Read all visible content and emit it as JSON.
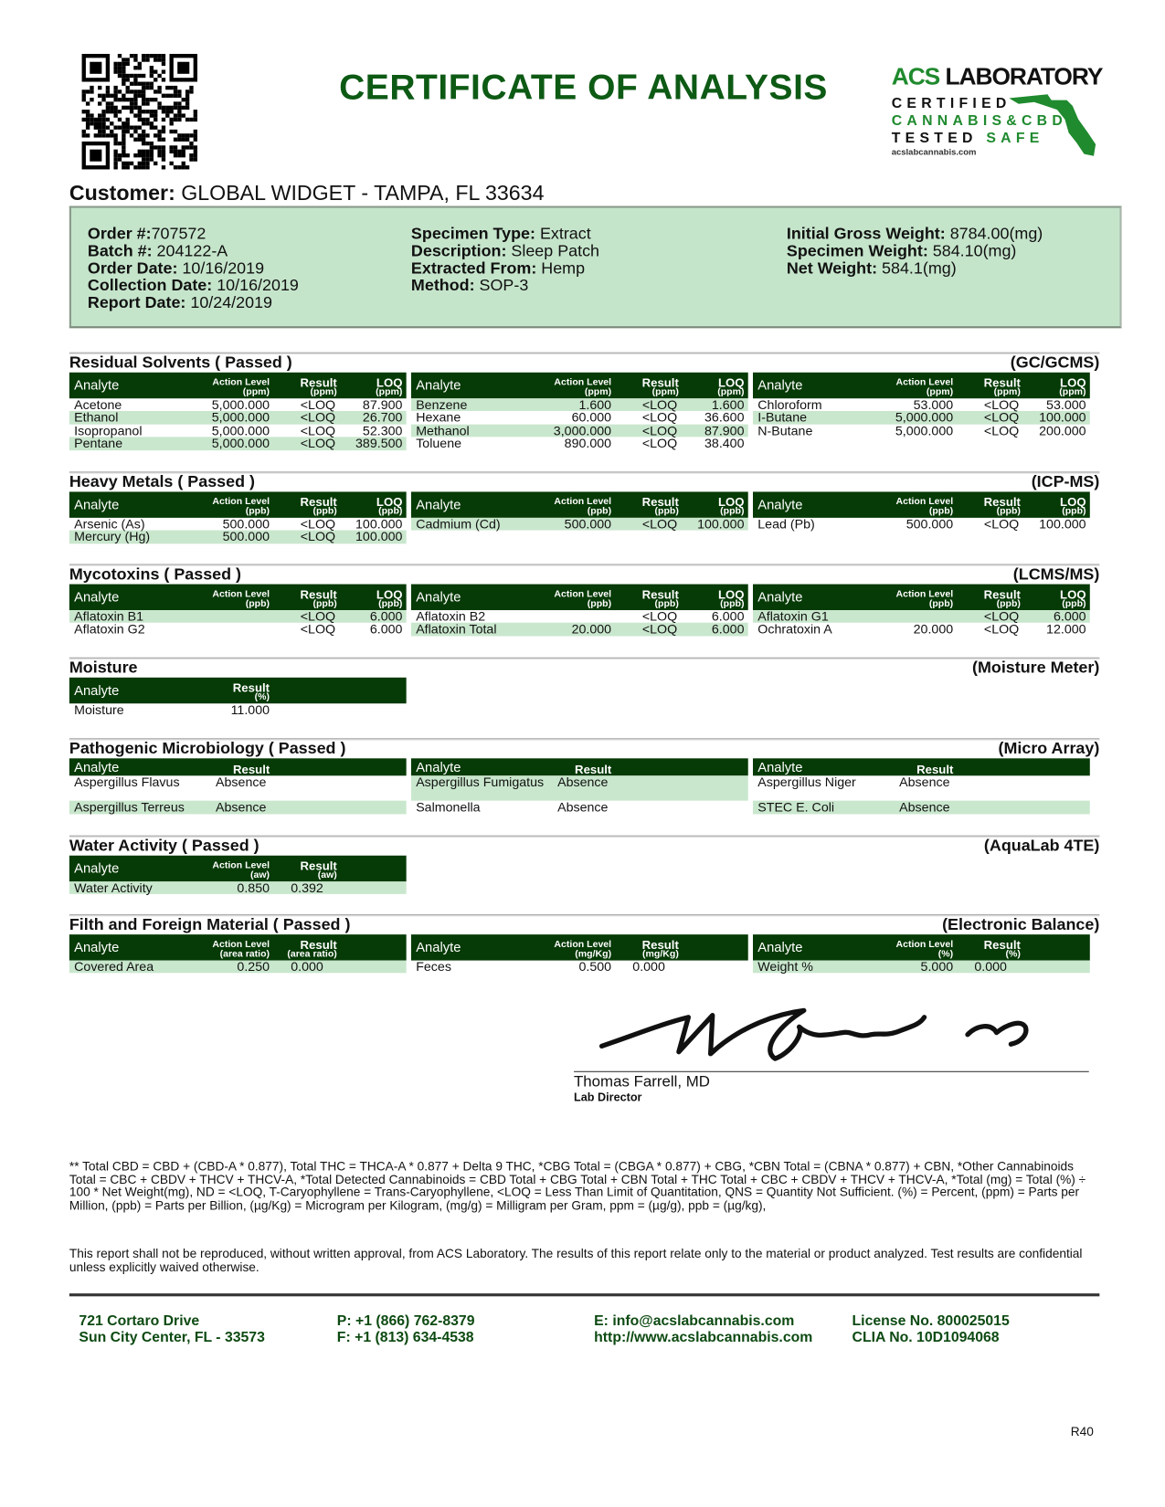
{
  "header": {
    "title": "CERTIFICATE OF ANALYSIS",
    "logo": {
      "brand_green": "ACS",
      "brand_black": "LABORATORY",
      "line1": "CERTIFIED",
      "line2": "CANNABIS&CBD",
      "line3a": "TESTED",
      "line3b": "SAFE",
      "url": "acslabcannabis.com"
    },
    "qr_icon": "qr-code"
  },
  "customer": {
    "label": "Customer:",
    "value": "GLOBAL WIDGET  - TAMPA, FL 33634"
  },
  "info": {
    "col1": [
      {
        "k": "Order #:",
        "v": "707572"
      },
      {
        "k": "Batch #:",
        "v": " 204122-A"
      },
      {
        "k": "Order Date:",
        "v": " 10/16/2019"
      },
      {
        "k": "Collection Date:",
        "v": " 10/16/2019"
      },
      {
        "k": "Report Date:",
        "v": " 10/24/2019"
      }
    ],
    "col2": [
      {
        "k": "Specimen Type:",
        "v": " Extract"
      },
      {
        "k": "Description:",
        "v": " Sleep Patch"
      },
      {
        "k": "Extracted From:",
        "v": " Hemp"
      },
      {
        "k": "Method:",
        "v": " SOP-3"
      }
    ],
    "col3": [
      {
        "k": "Initial Gross Weight:",
        "v": " 8784.00(mg)"
      },
      {
        "k": "Specimen Weight:",
        "v": " 584.10(mg)"
      },
      {
        "k": "Net Weight:",
        "v": " 584.1(mg)"
      }
    ]
  },
  "sections": [
    {
      "title": "Residual Solvents ( Passed )",
      "method": "(GC/GCMS)",
      "grid": "g4",
      "headers": [
        {
          "label": "Analyte"
        },
        {
          "label": "Action Level",
          "unit": "(ppm)"
        },
        {
          "label": "Result",
          "unit": "(ppm)"
        },
        {
          "label": "LOQ",
          "unit": "(ppm)"
        }
      ],
      "columns": [
        [
          [
            "Acetone",
            "5,000.000",
            "<LOQ",
            "87.900"
          ],
          [
            "Ethanol",
            "5,000.000",
            "<LOQ",
            "26.700"
          ],
          [
            "Isopropanol",
            "5,000.000",
            "<LOQ",
            "52.300"
          ],
          [
            "Pentane",
            "5,000.000",
            "<LOQ",
            "389.500"
          ]
        ],
        [
          [
            "Benzene",
            "1.600",
            "<LOQ",
            "1.600"
          ],
          [
            "Hexane",
            "60.000",
            "<LOQ",
            "36.600"
          ],
          [
            "Methanol",
            "3,000.000",
            "<LOQ",
            "87.900"
          ],
          [
            "Toluene",
            "890.000",
            "<LOQ",
            "38.400"
          ]
        ],
        [
          [
            "Chloroform",
            "53.000",
            "<LOQ",
            "53.000"
          ],
          [
            "I-Butane",
            "5,000.000",
            "<LOQ",
            "100.000"
          ],
          [
            "N-Butane",
            "5,000.000",
            "<LOQ",
            "200.000"
          ]
        ]
      ]
    },
    {
      "title": "Heavy Metals ( Passed )",
      "method": "(ICP-MS)",
      "grid": "g4",
      "headers": [
        {
          "label": "Analyte"
        },
        {
          "label": "Action Level",
          "unit": "(ppb)"
        },
        {
          "label": "Result",
          "unit": "(ppb)"
        },
        {
          "label": "LOQ",
          "unit": "(ppb)"
        }
      ],
      "columns": [
        [
          [
            "Arsenic (As)",
            "500.000",
            "<LOQ",
            "100.000"
          ],
          [
            "Mercury (Hg)",
            "500.000",
            "<LOQ",
            "100.000"
          ]
        ],
        [
          [
            "Cadmium (Cd)",
            "500.000",
            "<LOQ",
            "100.000"
          ]
        ],
        [
          [
            "Lead (Pb)",
            "500.000",
            "<LOQ",
            "100.000"
          ]
        ]
      ]
    },
    {
      "title": "Mycotoxins ( Passed )",
      "method": "(LCMS/MS)",
      "grid": "g4",
      "headers": [
        {
          "label": "Analyte"
        },
        {
          "label": "Action Level",
          "unit": "(ppb)"
        },
        {
          "label": "Result",
          "unit": "(ppb)"
        },
        {
          "label": "LOQ",
          "unit": "(ppb)"
        }
      ],
      "columns": [
        [
          [
            "Aflatoxin B1",
            "",
            "<LOQ",
            "6.000"
          ],
          [
            "Aflatoxin G2",
            "",
            "<LOQ",
            "6.000"
          ]
        ],
        [
          [
            "Aflatoxin B2",
            "",
            "<LOQ",
            "6.000"
          ],
          [
            "Aflatoxin Total",
            "20.000",
            "<LOQ",
            "6.000"
          ]
        ],
        [
          [
            "Aflatoxin G1",
            "",
            "<LOQ",
            "6.000"
          ],
          [
            "Ochratoxin A",
            "20.000",
            "<LOQ",
            "12.000"
          ]
        ]
      ]
    },
    {
      "title": "Moisture",
      "method": "(Moisture Meter)",
      "grid": "g2",
      "headers": [
        {
          "label": "Analyte"
        },
        {
          "label": "Result",
          "unit": "(%)"
        }
      ],
      "columns": [
        [
          [
            "Moisture",
            "11.000"
          ]
        ]
      ]
    },
    {
      "title": "Pathogenic Microbiology ( Passed )",
      "method": "(Micro Array)",
      "grid": "gp",
      "headers": [
        {
          "label": "Analyte"
        },
        {
          "label": "Result"
        }
      ],
      "columns": [
        [
          [
            "Aspergillus Flavus",
            "Absence"
          ],
          [
            "Aspergillus Terreus",
            "Absence"
          ]
        ],
        [
          [
            "Aspergillus Fumigatus",
            "Absence"
          ],
          [
            "Salmonella",
            "Absence"
          ]
        ],
        [
          [
            "Aspergillus Niger",
            "Absence"
          ],
          [
            "STEC E. Coli",
            "Absence"
          ]
        ]
      ]
    },
    {
      "title": "Water Activity ( Passed )",
      "method": "(AquaLab 4TE)",
      "grid": "g3",
      "headers": [
        {
          "label": "Analyte"
        },
        {
          "label": "Action Level",
          "unit": "(aw)"
        },
        {
          "label": "Result",
          "unit": "(aw)"
        }
      ],
      "columns": [
        [
          [
            "Water Activity",
            "0.850",
            "0.392"
          ]
        ]
      ]
    },
    {
      "title": "Filth and Foreign Material ( Passed )",
      "method": "(Electronic Balance)",
      "grid": "g3",
      "headers3": true,
      "headers": [
        {
          "label": "Analyte"
        },
        {
          "label": "Action Level",
          "unit": "(area ratio)"
        },
        {
          "label": "Result",
          "unit": "(area ratio)"
        }
      ],
      "col_headers": [
        [
          {
            "label": "Analyte"
          },
          {
            "label": "Action Level",
            "unit": "(area ratio)"
          },
          {
            "label": "Result",
            "unit": "(area ratio)"
          }
        ],
        [
          {
            "label": "Analyte"
          },
          {
            "label": "Action Level",
            "unit": "(mg/Kg)"
          },
          {
            "label": "Result",
            "unit": "(mg/Kg)"
          }
        ],
        [
          {
            "label": "Analyte"
          },
          {
            "label": "Action Level",
            "unit": "(%)"
          },
          {
            "label": "Result",
            "unit": "(%)"
          }
        ]
      ],
      "columns": [
        [
          [
            "Covered Area",
            "0.250",
            "0.000"
          ]
        ],
        [
          [
            "Feces",
            "0.500",
            "0.000"
          ]
        ],
        [
          [
            "Weight %",
            "5.000",
            "0.000"
          ]
        ]
      ]
    }
  ],
  "signature": {
    "name": "Thomas Farrell, MD",
    "title": "Lab Director"
  },
  "notes": "** Total CBD = CBD + (CBD-A * 0.877), Total THC = THCA-A * 0.877 + Delta 9 THC, *CBG Total = (CBGA * 0.877) + CBG, *CBN Total = (CBNA * 0.877) + CBN, *Other Cannabinoids Total = CBC + CBDV + THCV + THCV-A, *Total Detected Cannabinoids = CBD Total + CBG Total + CBN Total + THC Total + CBC + CBDV + THCV + THCV-A, *Total (mg) = Total (%) ÷ 100 * Net Weight(mg), ND = <LOQ, T-Caryophyllene = Trans-Caryophyllene, <LOQ = Less Than Limit of Quantitation, QNS = Quantity Not Sufficient. (%) = Percent, (ppm) = Parts per Million, (ppb) = Parts per Billion, (µg/Kg) = Microgram per Kilogram, (mg/g) = Milligram per Gram, ppm = (µg/g), ppb = (µg/kg),",
  "disclaimer": "This report shall not be reproduced, without written approval, from ACS Laboratory. The results of this report relate only to the material or product analyzed. Test results are confidential unless explicitly waived otherwise.",
  "footer": {
    "address1": "721 Cortaro Drive",
    "address2": "Sun City Center, FL - 33573",
    "phone": "P: +1 (866) 762-8379",
    "fax": "F: +1 (813) 634-4538",
    "email": "E: info@acslabcannabis.com",
    "web": "http://www.acslabcannabis.com",
    "license": "License No. 800025015",
    "clia": "CLIA No. 10D1094068"
  },
  "revision": "R40",
  "colors": {
    "title_green": "#0d5a14",
    "header_dark_green": "#063a06",
    "row_highlight": "#c9e7cd",
    "info_box": "#c5e5cb"
  }
}
